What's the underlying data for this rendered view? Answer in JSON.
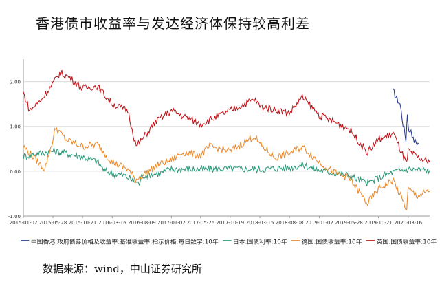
{
  "title": "香港债市收益率与发达经济体保持较高利差",
  "source": "数据来源：wind，中山证券研究所",
  "chart_data": {
    "type": "line",
    "title": "香港债市收益率与发达经济体保持较高利差",
    "xlabel": "",
    "ylabel": "",
    "ylim": [
      -1.0,
      2.5
    ],
    "yticks": [
      2.0,
      1.0,
      0.0,
      -1.0
    ],
    "ytick_labels": [
      "2.00",
      "1.00",
      "0.00",
      "-1.00"
    ],
    "xlim": [
      "2015-01-02",
      "2020-06-30"
    ],
    "xticks": [
      "2015-01-02",
      "2015-05-28",
      "2015-10-21",
      "2016-03-16",
      "2016-08-09",
      "2017-01-02",
      "2017-05-26",
      "2017-10-19",
      "2018-03-15",
      "2018-08-08",
      "2019-01-02",
      "2019-05-28",
      "2019-10-21",
      "2020-03-16"
    ],
    "grid": "horizontal",
    "legend_position": "bottom",
    "series": [
      {
        "name": "中国香港:政府债券价格及收益率:基准收益率:指示价格:每日数字:10年",
        "color": "#2a3d8f",
        "points": [
          [
            "2020-01-02",
            1.78
          ],
          [
            "2020-01-20",
            1.62
          ],
          [
            "2020-02-05",
            1.5
          ],
          [
            "2020-02-20",
            1.05
          ],
          [
            "2020-03-05",
            0.7
          ],
          [
            "2020-03-12",
            1.3
          ],
          [
            "2020-03-20",
            0.85
          ],
          [
            "2020-03-30",
            0.95
          ],
          [
            "2020-04-10",
            0.7
          ],
          [
            "2020-04-24",
            0.65
          ],
          [
            "2020-05-08",
            0.6
          ]
        ]
      },
      {
        "name": "日本:国债利率:10年",
        "color": "#2e9a7a",
        "points": [
          [
            "2015-01-02",
            0.33
          ],
          [
            "2015-03-01",
            0.38
          ],
          [
            "2015-05-28",
            0.45
          ],
          [
            "2015-08-01",
            0.4
          ],
          [
            "2015-10-21",
            0.32
          ],
          [
            "2016-01-01",
            0.22
          ],
          [
            "2016-02-10",
            0.0
          ],
          [
            "2016-03-16",
            -0.05
          ],
          [
            "2016-05-15",
            -0.1
          ],
          [
            "2016-07-27",
            -0.28
          ],
          [
            "2016-08-09",
            -0.1
          ],
          [
            "2016-11-01",
            -0.05
          ],
          [
            "2017-01-02",
            0.05
          ],
          [
            "2017-05-26",
            0.04
          ],
          [
            "2017-10-19",
            0.06
          ],
          [
            "2018-03-15",
            0.04
          ],
          [
            "2018-08-08",
            0.08
          ],
          [
            "2018-10-15",
            0.14
          ],
          [
            "2019-01-02",
            0.02
          ],
          [
            "2019-05-28",
            -0.1
          ],
          [
            "2019-08-30",
            -0.27
          ],
          [
            "2019-10-21",
            -0.15
          ],
          [
            "2020-01-02",
            -0.02
          ],
          [
            "2020-03-16",
            0.05
          ],
          [
            "2020-06-30",
            0.02
          ]
        ]
      },
      {
        "name": "德国:国债收益率:10年",
        "color": "#ec8a2c",
        "points": [
          [
            "2015-01-02",
            0.55
          ],
          [
            "2015-04-17",
            0.05
          ],
          [
            "2015-05-28",
            0.7
          ],
          [
            "2015-06-10",
            0.98
          ],
          [
            "2015-08-01",
            0.7
          ],
          [
            "2015-10-21",
            0.55
          ],
          [
            "2016-01-01",
            0.6
          ],
          [
            "2016-03-16",
            0.2
          ],
          [
            "2016-06-01",
            0.05
          ],
          [
            "2016-07-08",
            -0.19
          ],
          [
            "2016-08-09",
            -0.1
          ],
          [
            "2016-11-01",
            0.15
          ],
          [
            "2017-01-02",
            0.25
          ],
          [
            "2017-03-01",
            0.42
          ],
          [
            "2017-05-26",
            0.35
          ],
          [
            "2017-07-10",
            0.55
          ],
          [
            "2017-10-19",
            0.45
          ],
          [
            "2018-02-15",
            0.78
          ],
          [
            "2018-03-15",
            0.6
          ],
          [
            "2018-05-29",
            0.3
          ],
          [
            "2018-08-08",
            0.4
          ],
          [
            "2018-10-10",
            0.55
          ],
          [
            "2019-01-02",
            0.2
          ],
          [
            "2019-03-25",
            -0.05
          ],
          [
            "2019-05-28",
            -0.15
          ],
          [
            "2019-08-28",
            -0.72
          ],
          [
            "2019-10-21",
            -0.4
          ],
          [
            "2020-01-02",
            -0.2
          ],
          [
            "2020-03-09",
            -0.86
          ],
          [
            "2020-03-16",
            -0.4
          ],
          [
            "2020-05-01",
            -0.55
          ],
          [
            "2020-06-30",
            -0.45
          ]
        ]
      },
      {
        "name": "英国:国债收益率:10年",
        "color": "#c0161c",
        "points": [
          [
            "2015-01-02",
            1.75
          ],
          [
            "2015-02-02",
            1.35
          ],
          [
            "2015-04-01",
            1.6
          ],
          [
            "2015-05-28",
            1.95
          ],
          [
            "2015-07-01",
            2.2
          ],
          [
            "2015-08-15",
            2.1
          ],
          [
            "2015-10-21",
            1.85
          ],
          [
            "2016-01-01",
            1.9
          ],
          [
            "2016-03-16",
            1.5
          ],
          [
            "2016-06-01",
            1.35
          ],
          [
            "2016-07-12",
            0.55
          ],
          [
            "2016-08-09",
            0.7
          ],
          [
            "2016-10-15",
            1.1
          ],
          [
            "2017-01-02",
            1.35
          ],
          [
            "2017-05-26",
            1.05
          ],
          [
            "2017-10-19",
            1.35
          ],
          [
            "2018-02-15",
            1.6
          ],
          [
            "2018-03-15",
            1.45
          ],
          [
            "2018-08-08",
            1.3
          ],
          [
            "2018-10-10",
            1.65
          ],
          [
            "2019-01-02",
            1.25
          ],
          [
            "2019-05-28",
            0.95
          ],
          [
            "2019-08-28",
            0.42
          ],
          [
            "2019-10-21",
            0.7
          ],
          [
            "2019-12-15",
            0.8
          ],
          [
            "2020-01-02",
            0.85
          ],
          [
            "2020-03-09",
            0.15
          ],
          [
            "2020-03-16",
            0.45
          ],
          [
            "2020-05-01",
            0.3
          ],
          [
            "2020-06-30",
            0.2
          ]
        ]
      }
    ]
  }
}
